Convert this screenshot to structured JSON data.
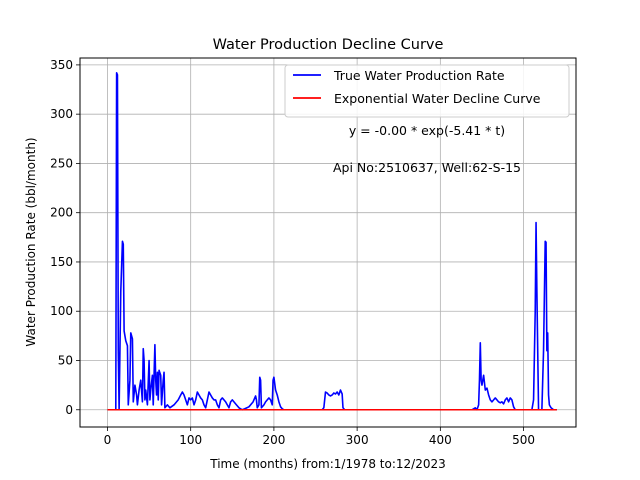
{
  "chart_data": {
    "type": "line",
    "title": "Water Production Decline Curve",
    "xlabel": "Time (months) from:1/1978 to:12/2023",
    "ylabel": "Water Production Rate (bbl/month)",
    "xlim": [
      -33,
      563
    ],
    "ylim": [
      -17.5,
      357
    ],
    "x_ticks": [
      0,
      100,
      200,
      300,
      400,
      500
    ],
    "y_ticks": [
      0,
      50,
      100,
      150,
      200,
      250,
      300,
      350
    ],
    "grid": true,
    "legend_position": "top-right",
    "annotations": [
      "y = -0.00 * exp(-5.41 * t)",
      "Api No:2510637, Well:62-S-15"
    ],
    "series": [
      {
        "name": "True Water Production Rate",
        "color": "#0000ff",
        "points": [
          [
            0,
            0
          ],
          [
            8,
            0
          ],
          [
            10,
            0
          ],
          [
            11,
            342
          ],
          [
            12,
            340
          ],
          [
            13,
            60
          ],
          [
            14,
            0
          ],
          [
            16,
            120
          ],
          [
            18,
            171
          ],
          [
            19,
            168
          ],
          [
            20,
            80
          ],
          [
            22,
            70
          ],
          [
            24,
            65
          ],
          [
            25,
            5
          ],
          [
            27,
            30
          ],
          [
            28,
            78
          ],
          [
            30,
            72
          ],
          [
            31,
            8
          ],
          [
            33,
            25
          ],
          [
            35,
            15
          ],
          [
            36,
            5
          ],
          [
            38,
            20
          ],
          [
            40,
            30
          ],
          [
            42,
            8
          ],
          [
            43,
            62
          ],
          [
            44,
            50
          ],
          [
            45,
            10
          ],
          [
            46,
            20
          ],
          [
            48,
            5
          ],
          [
            50,
            50
          ],
          [
            51,
            10
          ],
          [
            52,
            20
          ],
          [
            54,
            35
          ],
          [
            55,
            5
          ],
          [
            57,
            66
          ],
          [
            58,
            30
          ],
          [
            59,
            15
          ],
          [
            60,
            38
          ],
          [
            61,
            10
          ],
          [
            62,
            40
          ],
          [
            64,
            35
          ],
          [
            65,
            5
          ],
          [
            67,
            30
          ],
          [
            68,
            38
          ],
          [
            69,
            2
          ],
          [
            72,
            5
          ],
          [
            75,
            2
          ],
          [
            80,
            5
          ],
          [
            85,
            10
          ],
          [
            88,
            15
          ],
          [
            90,
            18
          ],
          [
            92,
            15
          ],
          [
            94,
            10
          ],
          [
            96,
            5
          ],
          [
            98,
            12
          ],
          [
            100,
            10
          ],
          [
            102,
            12
          ],
          [
            104,
            5
          ],
          [
            106,
            10
          ],
          [
            108,
            18
          ],
          [
            110,
            15
          ],
          [
            112,
            12
          ],
          [
            114,
            10
          ],
          [
            116,
            5
          ],
          [
            118,
            2
          ],
          [
            120,
            10
          ],
          [
            122,
            18
          ],
          [
            124,
            15
          ],
          [
            126,
            12
          ],
          [
            128,
            10
          ],
          [
            130,
            10
          ],
          [
            132,
            5
          ],
          [
            134,
            2
          ],
          [
            136,
            10
          ],
          [
            138,
            12
          ],
          [
            140,
            10
          ],
          [
            142,
            8
          ],
          [
            144,
            5
          ],
          [
            146,
            2
          ],
          [
            148,
            8
          ],
          [
            150,
            10
          ],
          [
            152,
            8
          ],
          [
            155,
            5
          ],
          [
            158,
            2
          ],
          [
            160,
            1
          ],
          [
            162,
            0
          ],
          [
            165,
            1
          ],
          [
            170,
            3
          ],
          [
            175,
            8
          ],
          [
            178,
            14
          ],
          [
            179,
            10
          ],
          [
            180,
            2
          ],
          [
            182,
            5
          ],
          [
            183,
            33
          ],
          [
            184,
            30
          ],
          [
            185,
            2
          ],
          [
            188,
            5
          ],
          [
            190,
            8
          ],
          [
            192,
            10
          ],
          [
            194,
            12
          ],
          [
            196,
            10
          ],
          [
            198,
            5
          ],
          [
            199,
            30
          ],
          [
            200,
            33
          ],
          [
            202,
            20
          ],
          [
            204,
            15
          ],
          [
            206,
            8
          ],
          [
            208,
            3
          ],
          [
            210,
            1
          ],
          [
            212,
            0
          ],
          [
            258,
            0
          ],
          [
            260,
            2
          ],
          [
            262,
            18
          ],
          [
            264,
            17
          ],
          [
            266,
            15
          ],
          [
            268,
            14
          ],
          [
            270,
            15
          ],
          [
            272,
            17
          ],
          [
            274,
            16
          ],
          [
            276,
            18
          ],
          [
            278,
            15
          ],
          [
            280,
            20
          ],
          [
            282,
            16
          ],
          [
            283,
            2
          ],
          [
            285,
            0
          ],
          [
            438,
            0
          ],
          [
            440,
            1
          ],
          [
            442,
            2
          ],
          [
            444,
            0
          ],
          [
            446,
            5
          ],
          [
            447,
            30
          ],
          [
            448,
            68
          ],
          [
            449,
            30
          ],
          [
            450,
            25
          ],
          [
            452,
            35
          ],
          [
            454,
            20
          ],
          [
            456,
            22
          ],
          [
            458,
            15
          ],
          [
            460,
            10
          ],
          [
            462,
            8
          ],
          [
            464,
            10
          ],
          [
            466,
            12
          ],
          [
            468,
            10
          ],
          [
            470,
            8
          ],
          [
            472,
            7
          ],
          [
            474,
            8
          ],
          [
            476,
            6
          ],
          [
            478,
            10
          ],
          [
            480,
            12
          ],
          [
            482,
            8
          ],
          [
            484,
            12
          ],
          [
            486,
            10
          ],
          [
            488,
            3
          ],
          [
            490,
            0
          ],
          [
            510,
            0
          ],
          [
            512,
            10
          ],
          [
            514,
            100
          ],
          [
            515,
            190
          ],
          [
            516,
            120
          ],
          [
            518,
            0
          ],
          [
            522,
            0
          ],
          [
            524,
            60
          ],
          [
            526,
            171
          ],
          [
            527,
            170
          ],
          [
            528,
            60
          ],
          [
            529,
            78
          ],
          [
            530,
            15
          ],
          [
            531,
            5
          ],
          [
            533,
            2
          ],
          [
            536,
            0
          ],
          [
            540,
            0
          ]
        ]
      },
      {
        "name": "Exponential Water Decline Curve",
        "color": "#ff0000",
        "points": [
          [
            0,
            0
          ],
          [
            540,
            0
          ]
        ]
      }
    ]
  }
}
